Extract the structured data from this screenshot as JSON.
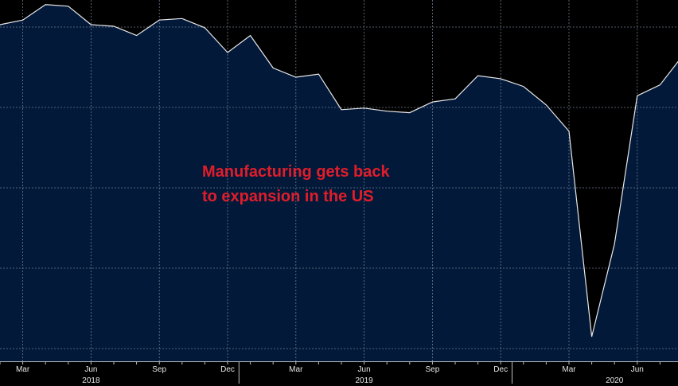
{
  "chart_data": {
    "type": "area",
    "title": "",
    "xlabel": "",
    "ylabel": "",
    "x": [
      "2018-02",
      "2018-03",
      "2018-04",
      "2018-05",
      "2018-06",
      "2018-07",
      "2018-08",
      "2018-09",
      "2018-10",
      "2018-11",
      "2018-12",
      "2019-01",
      "2019-02",
      "2019-03",
      "2019-04",
      "2019-05",
      "2019-06",
      "2019-07",
      "2019-08",
      "2019-09",
      "2019-10",
      "2019-11",
      "2019-12",
      "2020-01",
      "2020-02",
      "2020-03",
      "2020-04",
      "2020-05",
      "2020-06",
      "2020-07",
      "2020-08"
    ],
    "values": [
      60.6,
      60.9,
      61.9,
      61.8,
      60.6,
      60.5,
      59.9,
      60.9,
      61.0,
      60.4,
      58.8,
      59.9,
      57.8,
      57.2,
      57.4,
      55.1,
      55.2,
      55.0,
      54.9,
      55.6,
      55.8,
      57.3,
      57.1,
      56.6,
      55.4,
      53.7,
      40.4,
      46.4,
      56.0,
      56.7,
      58.6
    ],
    "ylim": [
      38.8,
      62.2
    ],
    "grid": true,
    "colors": {
      "area_fill": "#03193a",
      "line": "#e8e8e8",
      "background": "#000000",
      "grid": "#6d7a8c",
      "annotation": "#e11d2a"
    },
    "x_tick_labels": [
      {
        "label": "Mar",
        "at": "2018-03"
      },
      {
        "label": "Jun",
        "at": "2018-06"
      },
      {
        "label": "Sep",
        "at": "2018-09"
      },
      {
        "label": "Dec",
        "at": "2018-12"
      },
      {
        "label": "Mar",
        "at": "2019-03"
      },
      {
        "label": "Jun",
        "at": "2019-06"
      },
      {
        "label": "Sep",
        "at": "2019-09"
      },
      {
        "label": "Dec",
        "at": "2019-12"
      },
      {
        "label": "Mar",
        "at": "2020-03"
      },
      {
        "label": "Jun",
        "at": "2020-06"
      }
    ],
    "year_labels": [
      {
        "label": "2018",
        "at": "2018-06"
      },
      {
        "label": "2019",
        "at": "2019-06"
      },
      {
        "label": "2020",
        "at": "2020-05"
      }
    ],
    "annotation": {
      "lines": [
        "Manufacturing gets back",
        "to expansion in the US"
      ]
    }
  }
}
